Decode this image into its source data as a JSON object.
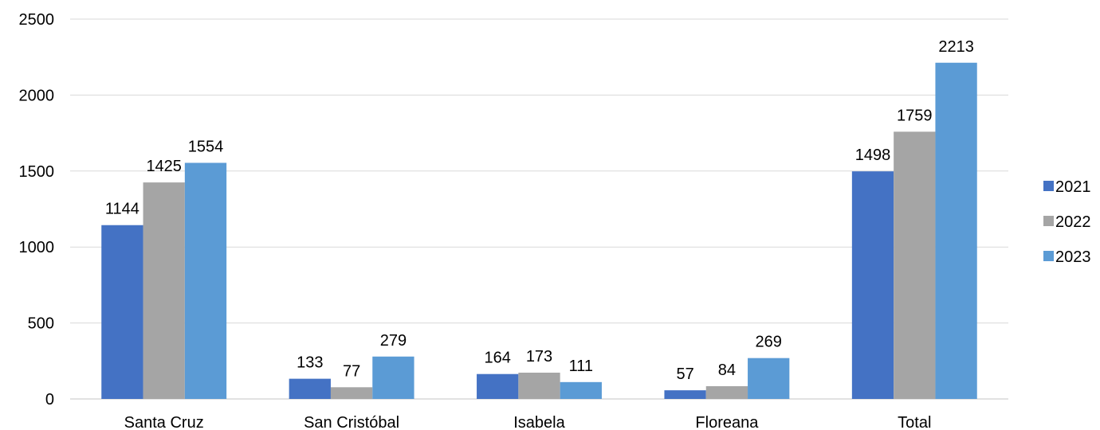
{
  "chart_data": {
    "type": "bar",
    "title": "",
    "xlabel": "",
    "ylabel": "",
    "categories": [
      "Santa Cruz",
      "San Cristóbal",
      "Isabela",
      "Floreana",
      "Total"
    ],
    "series": [
      {
        "name": "2021",
        "color": "#4472C4",
        "values": [
          1144,
          133,
          164,
          57,
          1498
        ]
      },
      {
        "name": "2022",
        "color": "#A5A5A5",
        "values": [
          1425,
          77,
          173,
          84,
          1759
        ]
      },
      {
        "name": "2023",
        "color": "#5B9BD5",
        "values": [
          1554,
          279,
          111,
          269,
          2213
        ]
      }
    ],
    "ylim": [
      0,
      2500
    ],
    "yticks": [
      "0",
      "500",
      "1000",
      "1500",
      "2000",
      "2500"
    ],
    "grid": true,
    "gridline_color": "#D9D9D9",
    "legend_position": "right"
  }
}
